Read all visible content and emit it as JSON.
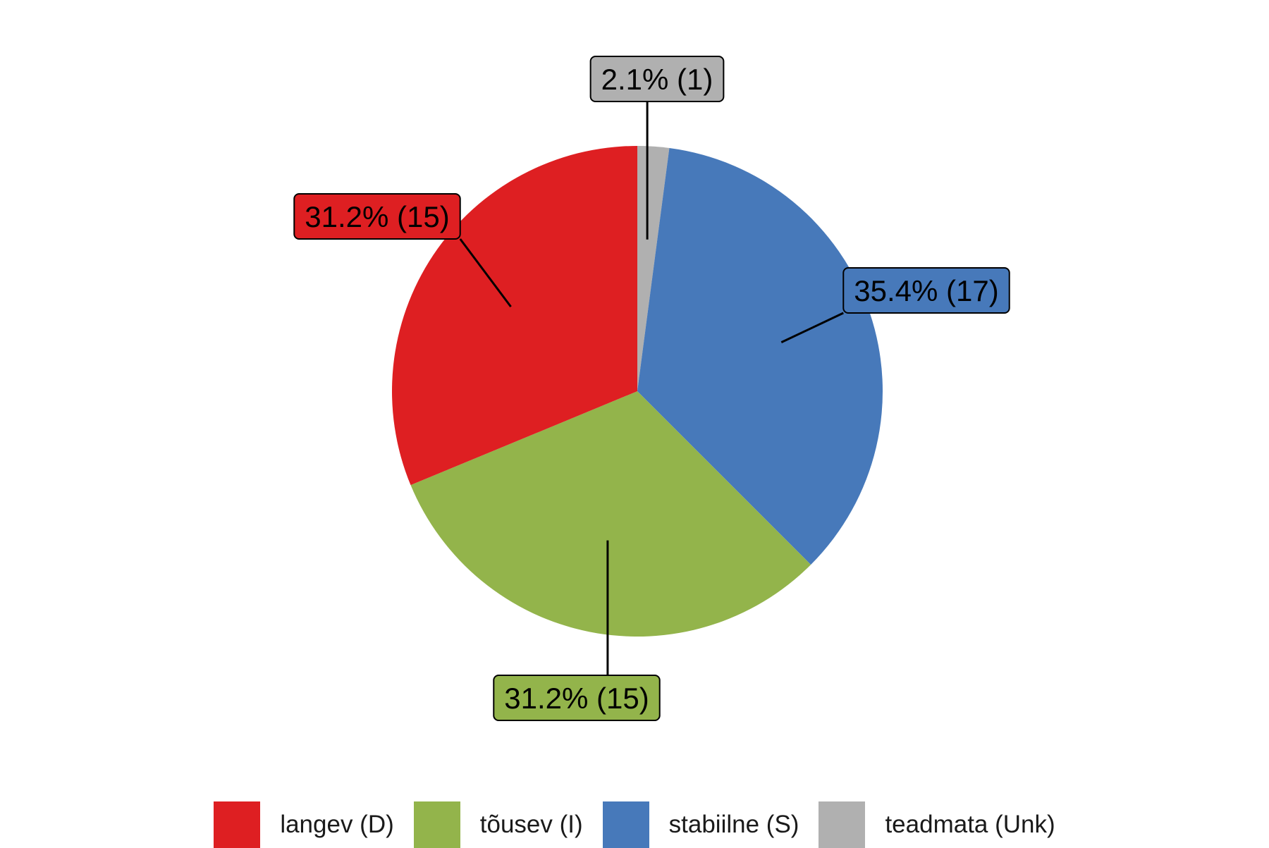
{
  "chart_data": {
    "type": "pie",
    "start_angle": "12 o'clock",
    "direction": "clockwise",
    "slices": [
      {
        "key": "teadmata",
        "label": "teadmata (Unk)",
        "value": 1,
        "percent": 2.1,
        "data_label": "2.1% (1)",
        "color": "#B0B0B0"
      },
      {
        "key": "stabiilne",
        "label": "stabiilne (S)",
        "value": 17,
        "percent": 35.4,
        "data_label": "35.4% (17)",
        "color": "#4779BA"
      },
      {
        "key": "tousev",
        "label": "tõusev (I)",
        "value": 15,
        "percent": 31.2,
        "data_label": "31.2% (15)",
        "color": "#93B44B"
      },
      {
        "key": "langev",
        "label": "langev (D)",
        "value": 15,
        "percent": 31.2,
        "data_label": "31.2% (15)",
        "color": "#DE1F22"
      }
    ],
    "legend": {
      "position": "bottom",
      "order": [
        "langev",
        "tousev",
        "stabiilne",
        "teadmata"
      ]
    }
  }
}
